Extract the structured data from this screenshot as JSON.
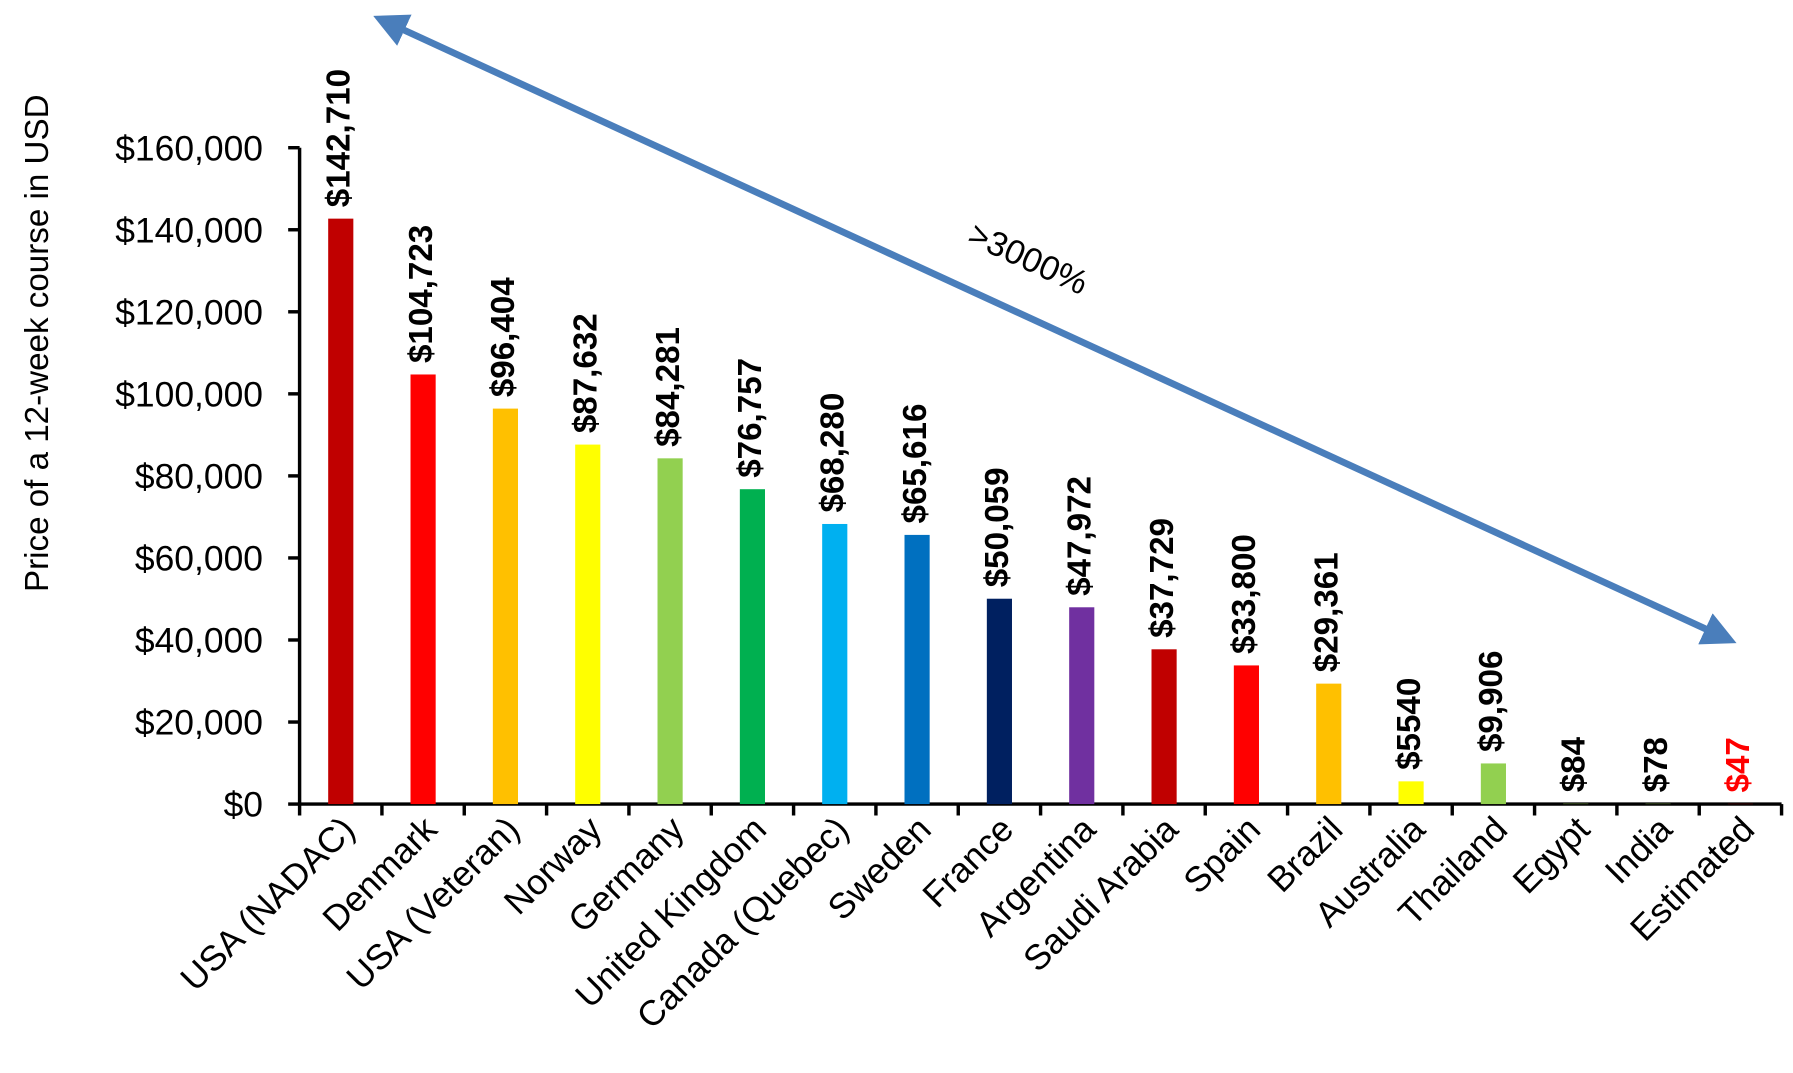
{
  "chart_data": {
    "type": "bar",
    "ylabel": "Price of a 12-week course in USD",
    "annotation": ">3000%",
    "categories": [
      "USA (NADAC)",
      "Denmark",
      "USA (Veteran)",
      "Norway",
      "Germany",
      "United Kingdom",
      "Canada (Quebec)",
      "Sweden",
      "France",
      "Argentina",
      "Saudi Arabia",
      "Spain",
      "Brazil",
      "Australia",
      "Thailand",
      "Egypt",
      "India",
      "Estimated"
    ],
    "values": [
      142710,
      104723,
      96404,
      87632,
      84281,
      76757,
      68280,
      65616,
      50059,
      47972,
      37729,
      33800,
      29361,
      5540,
      9906,
      84,
      78,
      47
    ],
    "value_labels": [
      "$142,710",
      "$104,723",
      "$96,404",
      "$87,632",
      "$84,281",
      "$76,757",
      "$68,280",
      "$65,616",
      "$50,059",
      "$47,972",
      "$37,729",
      "$33,800",
      "$29,361",
      "$5540",
      "$9,906",
      "$84",
      "$78",
      "$47"
    ],
    "colors": [
      "#c00000",
      "#ff0000",
      "#ffc000",
      "#ffff00",
      "#92d050",
      "#00b050",
      "#00b0f0",
      "#0070c0",
      "#002060",
      "#7030a0",
      "#c00000",
      "#ff0000",
      "#ffc000",
      "#ffff00",
      "#92d050",
      "#92d050",
      "#92d050",
      "#ff0000"
    ],
    "value_label_colors": [
      "#000000",
      "#000000",
      "#000000",
      "#000000",
      "#000000",
      "#000000",
      "#000000",
      "#000000",
      "#000000",
      "#000000",
      "#000000",
      "#000000",
      "#000000",
      "#000000",
      "#000000",
      "#000000",
      "#000000",
      "#ff0000"
    ],
    "ylim": [
      0,
      160000
    ],
    "yticks": [
      {
        "value": 0,
        "label": "$0"
      },
      {
        "value": 20000,
        "label": "$20,000"
      },
      {
        "value": 40000,
        "label": "$40,000"
      },
      {
        "value": 60000,
        "label": "$60,000"
      },
      {
        "value": 80000,
        "label": "$80,000"
      },
      {
        "value": 100000,
        "label": "$100,000"
      },
      {
        "value": 120000,
        "label": "$120,000"
      },
      {
        "value": 140000,
        "label": "$140,000"
      },
      {
        "value": 160000,
        "label": "$160,000"
      }
    ],
    "grid": false
  }
}
